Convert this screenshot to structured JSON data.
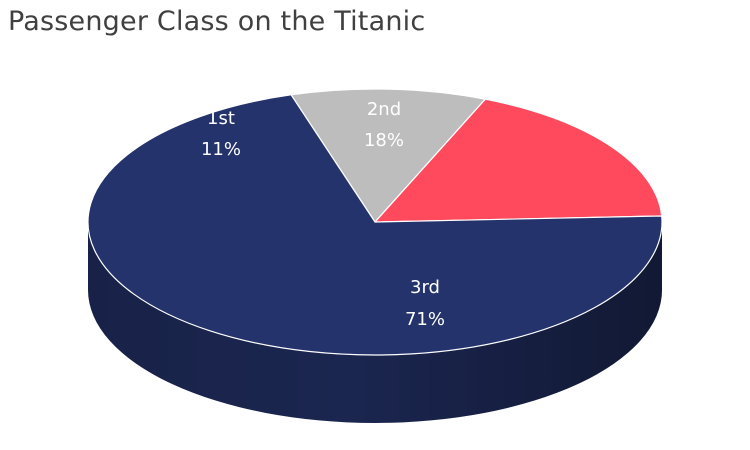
{
  "chart_data": {
    "type": "pie",
    "style": "3d",
    "title": "Passenger Class on the Titanic",
    "categories": [
      "1st",
      "2nd",
      "3rd"
    ],
    "values": [
      11,
      18,
      71
    ],
    "value_labels": [
      "11%",
      "18%",
      "71%"
    ],
    "colors": [
      "#BDBDBD",
      "#FF4A5E",
      "#25336C"
    ],
    "side_colors": [
      "#8E8E8E",
      "#C23344",
      "#1B2650"
    ],
    "label_color": "#FFFFFF",
    "legend": "none"
  }
}
